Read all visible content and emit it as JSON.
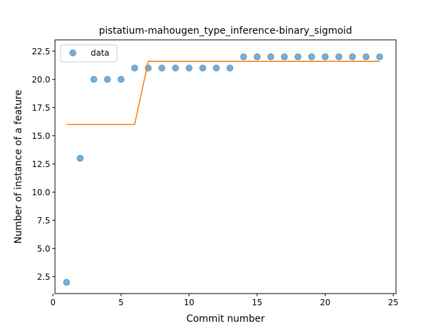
{
  "chart_data": {
    "type": "scatter",
    "title": "pistatium-mahougen_type_inference-binary_sigmoid",
    "xlabel": "Commit number",
    "ylabel": "Number of instance of a feature",
    "xlim": [
      0.15,
      25.2
    ],
    "ylim": [
      1.0,
      23.5
    ],
    "xticks": [
      "0",
      "5",
      "10",
      "15",
      "20",
      "25"
    ],
    "yticks": [
      "2.5",
      "5.0",
      "7.5",
      "10.0",
      "12.5",
      "15.0",
      "17.5",
      "20.0",
      "22.5"
    ],
    "grid": false,
    "legend": {
      "position": "top-left",
      "entries": [
        "data"
      ]
    },
    "series": [
      {
        "name": "data",
        "kind": "scatter",
        "color": "#1f77b4",
        "x": [
          1,
          2,
          3,
          4,
          5,
          6,
          7,
          8,
          9,
          10,
          11,
          12,
          13,
          14,
          15,
          16,
          17,
          18,
          19,
          20,
          21,
          22,
          23,
          24
        ],
        "y": [
          2,
          13,
          20,
          20,
          20,
          21,
          21,
          21,
          21,
          21,
          21,
          21,
          21,
          22,
          22,
          22,
          22,
          22,
          22,
          22,
          22,
          22,
          22,
          22
        ]
      },
      {
        "kind": "line",
        "color": "#ff7f0e",
        "x": [
          1,
          2,
          3,
          4,
          5,
          6,
          7,
          8,
          9,
          10,
          11,
          12,
          13,
          14,
          15,
          16,
          17,
          18,
          19,
          20,
          21,
          22,
          23,
          24
        ],
        "y": [
          16,
          16,
          16,
          16,
          16,
          16,
          21.6,
          21.6,
          21.6,
          21.6,
          21.6,
          21.6,
          21.6,
          21.6,
          21.6,
          21.6,
          21.6,
          21.6,
          21.6,
          21.6,
          21.6,
          21.6,
          21.6,
          21.6
        ]
      }
    ]
  }
}
